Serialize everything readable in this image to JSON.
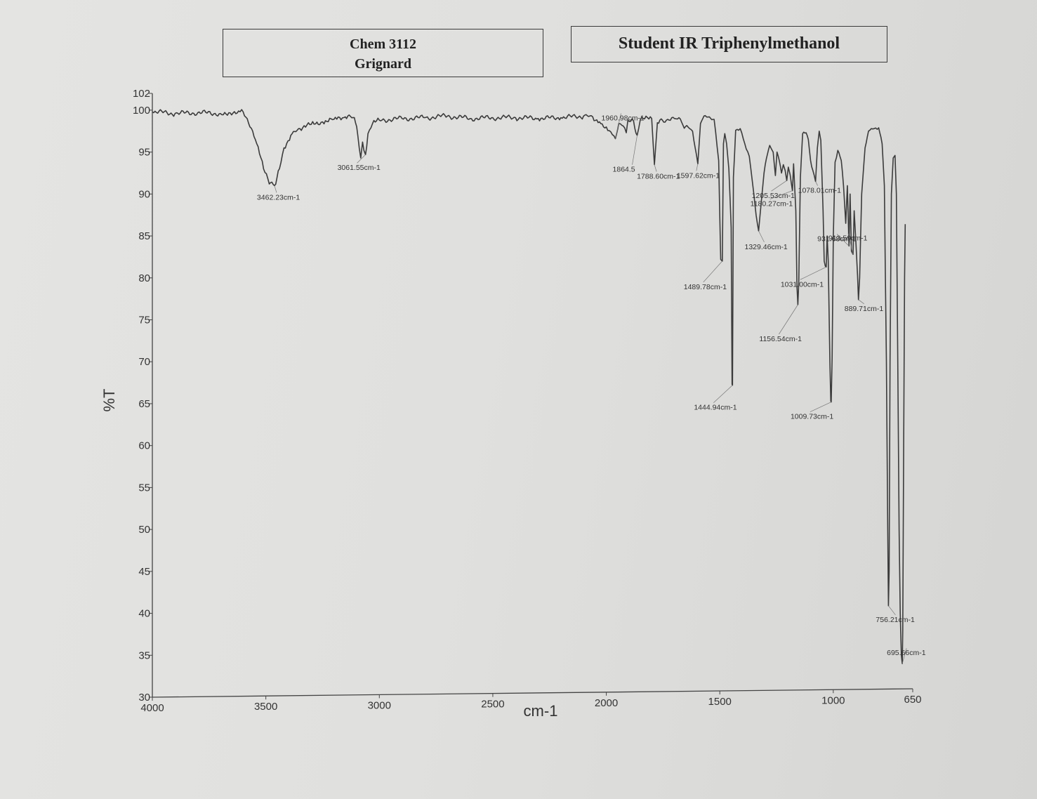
{
  "header": {
    "course": "Chem 3112",
    "experiment": "Grignard",
    "title": "Student IR Triphenylmethanol"
  },
  "chart_data": {
    "type": "line",
    "title": "Student IR Triphenylmethanol",
    "xlabel": "cm-1",
    "ylabel": "%T",
    "xlim": [
      4000,
      650
    ],
    "ylim": [
      30,
      102
    ],
    "x_reversed": true,
    "x_ticks": [
      4000,
      3500,
      3000,
      2500,
      2000,
      1500,
      1000,
      650
    ],
    "y_ticks": [
      30,
      35,
      40,
      45,
      50,
      55,
      60,
      65,
      70,
      75,
      80,
      85,
      90,
      95,
      100,
      102
    ],
    "grid": false,
    "series": [
      {
        "values": [
          [
            4000,
            99.8
          ],
          [
            3900,
            99.6
          ],
          [
            3800,
            99.7
          ],
          [
            3700,
            99.6
          ],
          [
            3620,
            99.9
          ],
          [
            3600,
            99.8
          ],
          [
            3570,
            98
          ],
          [
            3540,
            96
          ],
          [
            3510,
            93
          ],
          [
            3485,
            91.2
          ],
          [
            3462,
            91.0
          ],
          [
            3440,
            93
          ],
          [
            3420,
            95.5
          ],
          [
            3390,
            97
          ],
          [
            3350,
            97.8
          ],
          [
            3300,
            98.3
          ],
          [
            3250,
            98.6
          ],
          [
            3200,
            98.9
          ],
          [
            3150,
            99.2
          ],
          [
            3110,
            99.1
          ],
          [
            3095,
            97
          ],
          [
            3082,
            94.3
          ],
          [
            3074,
            96.2
          ],
          [
            3068,
            95.2
          ],
          [
            3061,
            94.7
          ],
          [
            3050,
            97.2
          ],
          [
            3030,
            98.4
          ],
          [
            3000,
            98.8
          ],
          [
            2900,
            99.0
          ],
          [
            2800,
            99.1
          ],
          [
            2700,
            99.3
          ],
          [
            2600,
            99.0
          ],
          [
            2500,
            99.1
          ],
          [
            2400,
            99.1
          ],
          [
            2300,
            99.0
          ],
          [
            2200,
            99.1
          ],
          [
            2100,
            99.3
          ],
          [
            2060,
            99.2
          ],
          [
            2030,
            98.6
          ],
          [
            2000,
            98.0
          ],
          [
            1980,
            97.4
          ],
          [
            1960,
            96.6
          ],
          [
            1945,
            98.4
          ],
          [
            1925,
            98.1
          ],
          [
            1912,
            97.3
          ],
          [
            1905,
            98.8
          ],
          [
            1880,
            98.7
          ],
          [
            1864,
            97.0
          ],
          [
            1850,
            98.9
          ],
          [
            1800,
            99.0
          ],
          [
            1788,
            93.5
          ],
          [
            1775,
            98.5
          ],
          [
            1730,
            98.9
          ],
          [
            1700,
            99.0
          ],
          [
            1680,
            99.1
          ],
          [
            1662,
            98.2
          ],
          [
            1640,
            98.0
          ],
          [
            1620,
            97.5
          ],
          [
            1597,
            93.6
          ],
          [
            1585,
            98.4
          ],
          [
            1570,
            99.3
          ],
          [
            1540,
            99.0
          ],
          [
            1525,
            98.9
          ],
          [
            1505,
            94
          ],
          [
            1496,
            82.2
          ],
          [
            1489,
            82.0
          ],
          [
            1484,
            96
          ],
          [
            1478,
            97.2
          ],
          [
            1470,
            96
          ],
          [
            1460,
            93
          ],
          [
            1450,
            86
          ],
          [
            1446,
            67.3
          ],
          [
            1444,
            67.2
          ],
          [
            1440,
            92
          ],
          [
            1430,
            97.6
          ],
          [
            1410,
            97.8
          ],
          [
            1390,
            96.0
          ],
          [
            1370,
            94.5
          ],
          [
            1350,
            90.0
          ],
          [
            1340,
            87.5
          ],
          [
            1329,
            85.6
          ],
          [
            1318,
            88.8
          ],
          [
            1305,
            92.5
          ],
          [
            1295,
            94.2
          ],
          [
            1280,
            95.8
          ],
          [
            1265,
            95.0
          ],
          [
            1255,
            92.2
          ],
          [
            1248,
            95.0
          ],
          [
            1238,
            94.0
          ],
          [
            1228,
            92.5
          ],
          [
            1220,
            93.5
          ],
          [
            1212,
            92.8
          ],
          [
            1205,
            91.6
          ],
          [
            1198,
            93.2
          ],
          [
            1190,
            92.3
          ],
          [
            1180,
            90.4
          ],
          [
            1175,
            93.6
          ],
          [
            1165,
            88.0
          ],
          [
            1160,
            79.0
          ],
          [
            1156,
            76.8
          ],
          [
            1152,
            79.5
          ],
          [
            1145,
            92.0
          ],
          [
            1135,
            97.2
          ],
          [
            1120,
            97.3
          ],
          [
            1110,
            96.5
          ],
          [
            1100,
            94.0
          ],
          [
            1090,
            92.8
          ],
          [
            1078,
            91.5
          ],
          [
            1070,
            95.5
          ],
          [
            1062,
            97.5
          ],
          [
            1055,
            96.4
          ],
          [
            1045,
            88.0
          ],
          [
            1040,
            82.0
          ],
          [
            1035,
            81.4
          ],
          [
            1031,
            81.3
          ],
          [
            1027,
            85.0
          ],
          [
            1022,
            82.0
          ],
          [
            1015,
            70.0
          ],
          [
            1011,
            65.3
          ],
          [
            1009,
            65.2
          ],
          [
            1005,
            70.5
          ],
          [
            1000,
            85.0
          ],
          [
            992,
            93.8
          ],
          [
            980,
            95.2
          ],
          [
            965,
            94.0
          ],
          [
            955,
            91.0
          ],
          [
            945,
            86.5
          ],
          [
            938,
            91.0
          ],
          [
            931,
            83.8
          ],
          [
            926,
            90.0
          ],
          [
            920,
            83.2
          ],
          [
            913,
            82.8
          ],
          [
            908,
            88.0
          ],
          [
            900,
            84.0
          ],
          [
            893,
            80.3
          ],
          [
            889,
            77.4
          ],
          [
            884,
            80.0
          ],
          [
            875,
            90.0
          ],
          [
            860,
            95.5
          ],
          [
            845,
            97.5
          ],
          [
            820,
            97.8
          ],
          [
            800,
            97.9
          ],
          [
            785,
            96.0
          ],
          [
            775,
            91.0
          ],
          [
            766,
            70.0
          ],
          [
            760,
            50.0
          ],
          [
            757,
            40.9
          ],
          [
            754,
            45.0
          ],
          [
            750,
            70.0
          ],
          [
            744,
            90.0
          ],
          [
            736,
            94.3
          ],
          [
            728,
            94.6
          ],
          [
            722,
            90.0
          ],
          [
            716,
            70.0
          ],
          [
            710,
            50.0
          ],
          [
            705,
            40.0
          ],
          [
            700,
            35.0
          ],
          [
            696,
            34.0
          ],
          [
            694,
            38.0
          ],
          [
            690,
            60.0
          ],
          [
            686,
            80.0
          ],
          [
            683,
            86.4
          ]
        ]
      }
    ],
    "annotations": [
      {
        "text": "3462.23cm-1",
        "x": 3462,
        "y": 91.0
      },
      {
        "text": "3061.55cm-1",
        "x": 3061,
        "y": 94.7
      },
      {
        "text": "1960.98cm-1",
        "x": 1960,
        "y": 96.6
      },
      {
        "text": "1864.5",
        "x": 1864,
        "y": 97.0
      },
      {
        "text": "1788.60cm-1",
        "x": 1788,
        "y": 93.5
      },
      {
        "text": "1597.62cm-1",
        "x": 1597,
        "y": 93.6
      },
      {
        "text": "1489.78cm-1",
        "x": 1489,
        "y": 82.0
      },
      {
        "text": "1444.94cm-1",
        "x": 1444,
        "y": 67.2
      },
      {
        "text": "1329.46cm-1",
        "x": 1329,
        "y": 85.6
      },
      {
        "text": "1205.53cm-1",
        "x": 1205,
        "y": 91.6
      },
      {
        "text": "1180.27cm-1",
        "x": 1180,
        "y": 90.4
      },
      {
        "text": "1078.01cm-1",
        "x": 1078,
        "y": 91.5
      },
      {
        "text": "1156.54cm-1",
        "x": 1156,
        "y": 76.8
      },
      {
        "text": "1031.00cm-1",
        "x": 1031,
        "y": 81.3
      },
      {
        "text": "1009.73cm-1",
        "x": 1009,
        "y": 65.2
      },
      {
        "text": "913.59cm-1",
        "x": 913,
        "y": 82.8
      },
      {
        "text": "931.68cm-1",
        "x": 931,
        "y": 83.8
      },
      {
        "text": "889.71cm-1",
        "x": 889,
        "y": 77.4
      },
      {
        "text": "756.21cm-1",
        "x": 757,
        "y": 40.9
      },
      {
        "text": "695.66cm-1",
        "x": 696,
        "y": 34.0
      }
    ],
    "line_color": "#3b3b3b",
    "axis_color": "#444444"
  }
}
